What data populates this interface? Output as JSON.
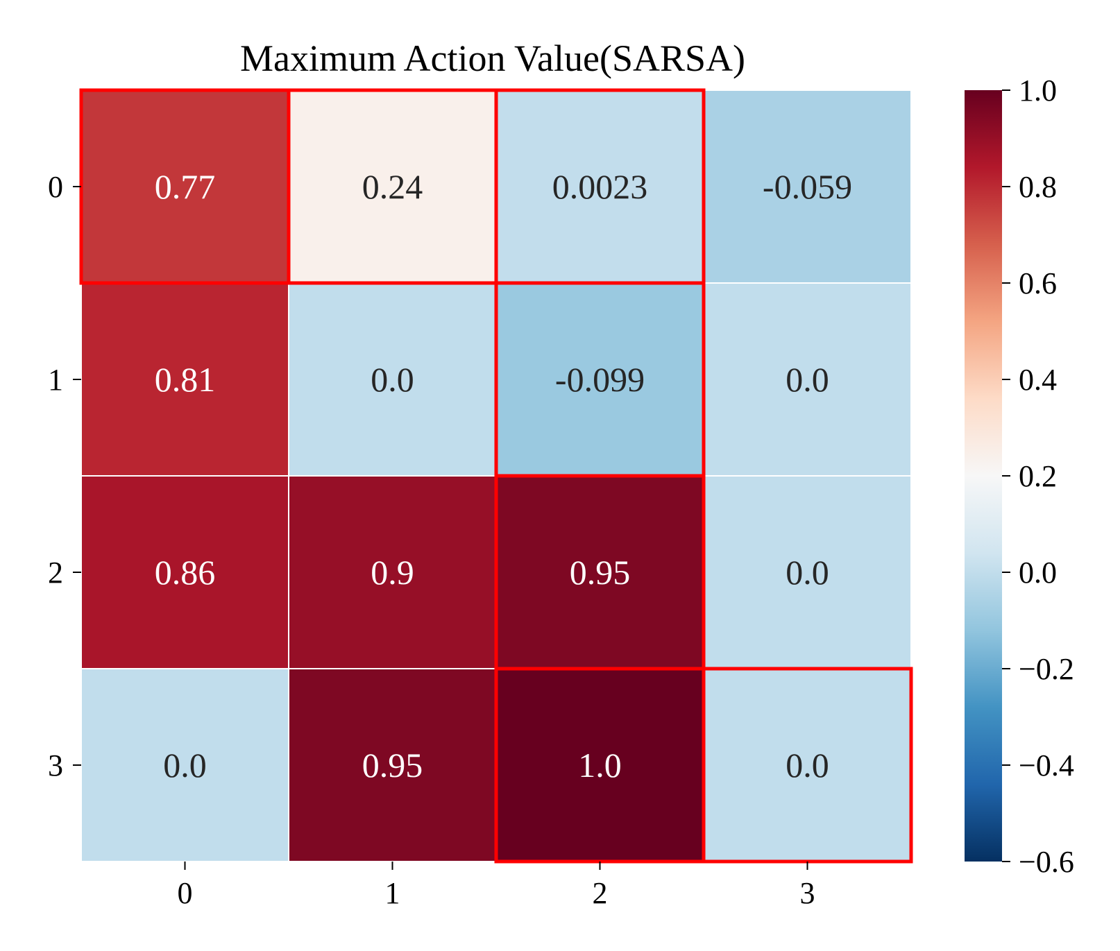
{
  "chart_data": {
    "type": "heatmap",
    "title": "Maximum Action Value(SARSA)",
    "x_categories": [
      "0",
      "1",
      "2",
      "3"
    ],
    "y_categories": [
      "0",
      "1",
      "2",
      "3"
    ],
    "values": [
      [
        0.77,
        0.24,
        0.0023,
        -0.059
      ],
      [
        0.81,
        0.0,
        -0.099,
        0.0
      ],
      [
        0.86,
        0.9,
        0.95,
        0.0
      ],
      [
        0.0,
        0.95,
        1.0,
        0.0
      ]
    ],
    "cell_labels": [
      [
        "0.77",
        "0.24",
        "0.0023",
        "-0.059"
      ],
      [
        "0.81",
        "0.0",
        "-0.099",
        "0.0"
      ],
      [
        "0.86",
        "0.9",
        "0.95",
        "0.0"
      ],
      [
        "0.0",
        "0.95",
        "1.0",
        "0.0"
      ]
    ],
    "colormap": "RdBu_r",
    "color_range": [
      -0.6,
      1.0
    ],
    "colorbar_ticks": [
      "1.0",
      "0.8",
      "0.6",
      "0.4",
      "0.2",
      "0.0",
      "−0.2",
      "−0.4",
      "−0.6"
    ],
    "colorbar_tick_values": [
      1.0,
      0.8,
      0.6,
      0.4,
      0.2,
      0.0,
      -0.2,
      -0.4,
      -0.6
    ],
    "highlighted_cells": [
      [
        0,
        0
      ],
      [
        0,
        1
      ],
      [
        0,
        2
      ],
      [
        1,
        2
      ],
      [
        2,
        2
      ],
      [
        3,
        2
      ],
      [
        3,
        3
      ]
    ],
    "highlight_color": "#ff0000",
    "colorbar_position": "right",
    "grid": false
  }
}
